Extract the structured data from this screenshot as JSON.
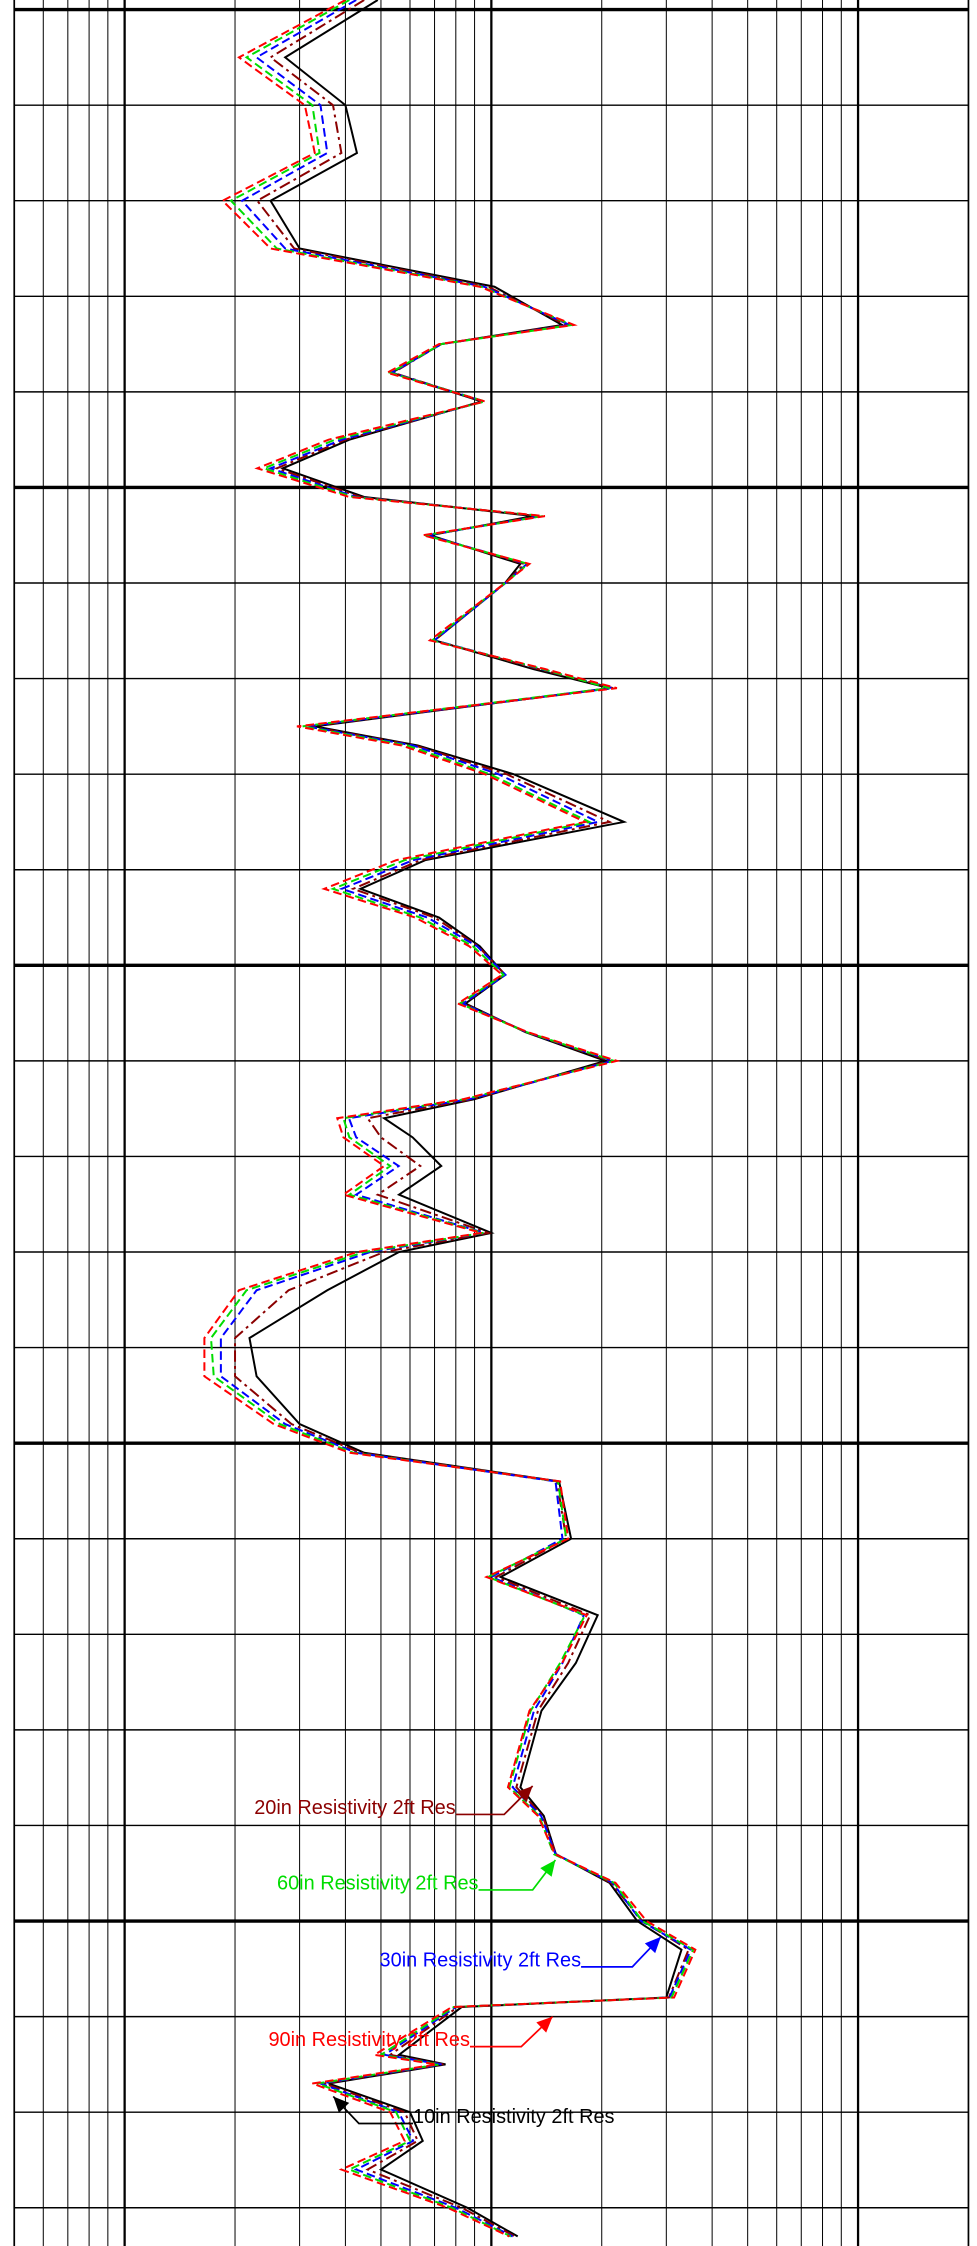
{
  "chart_data": {
    "type": "log-track",
    "xscale": "log",
    "grid": true,
    "y_inverted": true,
    "xlim": [
      0.5,
      200
    ],
    "xticks": [
      0.5,
      0.6,
      0.7,
      0.8,
      0.9,
      1,
      2,
      3,
      4,
      5,
      6,
      7,
      8,
      9,
      10,
      20,
      30,
      40,
      50,
      60,
      70,
      80,
      90,
      100,
      200
    ],
    "ylim": [
      -1,
      234
    ],
    "yticks": [
      0,
      10,
      20,
      30,
      40,
      50,
      60,
      70,
      80,
      90,
      100,
      110,
      120,
      130,
      140,
      150,
      160,
      170,
      180,
      190,
      200,
      210,
      220,
      230
    ],
    "y": [
      -1,
      5,
      10,
      15,
      20,
      25,
      29,
      33,
      35,
      38,
      41,
      45,
      48,
      51,
      53,
      55,
      58,
      60,
      66,
      69,
      71,
      75,
      77,
      80,
      85,
      89,
      92,
      95,
      98,
      101,
      104,
      107,
      110,
      114,
      116,
      118,
      121,
      124,
      128,
      130,
      134,
      139,
      143,
      148,
      151,
      154,
      160,
      164,
      168,
      173,
      178,
      186,
      189,
      193,
      196,
      200,
      203,
      208,
      209,
      214,
      215,
      217,
      220,
      223,
      226,
      230,
      233
    ],
    "series": [
      {
        "name": "10in Resistivity 2ft Res",
        "color": "#000000",
        "dash": "solid",
        "values": [
          4.9,
          2.74,
          4.0,
          4.3,
          2.5,
          3.0,
          10.2,
          15.6,
          7.3,
          5.35,
          9.4,
          4.1,
          2.7,
          4.5,
          13.0,
          6.8,
          12.0,
          10.9,
          7.0,
          13.0,
          21.0,
          3.3,
          6.3,
          11.5,
          23.0,
          6.6,
          4.4,
          7.2,
          9.3,
          10.9,
          8.5,
          12.4,
          20.5,
          9.0,
          5.1,
          6.1,
          7.3,
          5.6,
          10.0,
          5.6,
          3.57,
          2.19,
          2.29,
          3.0,
          4.5,
          15.3,
          16.5,
          10.6,
          19.5,
          17.0,
          13.7,
          12.0,
          13.9,
          15.0,
          21.0,
          25.0,
          33.0,
          30.0,
          8.3,
          5.6,
          7.5,
          3.6,
          6.0,
          6.5,
          5.0,
          8.6,
          11.8
        ]
      },
      {
        "name": "20in Resistivity 2ft Res",
        "color": "#8b0000",
        "dash": "dashdot",
        "values": [
          4.5,
          2.5,
          3.7,
          3.9,
          2.3,
          2.9,
          9.8,
          16.0,
          7.3,
          5.4,
          9.5,
          4.0,
          2.6,
          4.4,
          13.4,
          6.7,
          12.3,
          10.9,
          7.0,
          13.4,
          21.5,
          3.2,
          6.2,
          11.0,
          21.0,
          6.4,
          4.2,
          7.0,
          9.2,
          10.9,
          8.4,
          12.5,
          21.0,
          8.9,
          4.6,
          5.0,
          6.4,
          4.9,
          9.8,
          5.1,
          2.8,
          2.0,
          2.0,
          2.85,
          4.4,
          15.1,
          16.0,
          10.3,
          18.6,
          16.2,
          13.4,
          11.7,
          13.8,
          15.0,
          21.2,
          25.8,
          34.5,
          30.5,
          8.1,
          5.3,
          7.4,
          3.5,
          5.8,
          6.3,
          4.6,
          8.3,
          11.6
        ]
      },
      {
        "name": "30in Resistivity 2ft Res",
        "color": "#0000ff",
        "dash": "dash",
        "values": [
          4.28,
          2.29,
          3.42,
          3.57,
          2.09,
          2.74,
          9.56,
          16.35,
          7.31,
          5.35,
          9.56,
          3.91,
          2.5,
          4.28,
          13.67,
          6.69,
          12.5,
          10.93,
          6.99,
          13.67,
          21.4,
          3.13,
          6.12,
          10.45,
          19.54,
          6.12,
          3.91,
          6.69,
          9.14,
          10.93,
          8.36,
          12.5,
          21.4,
          8.74,
          4.09,
          4.28,
          5.59,
          4.28,
          9.56,
          4.68,
          2.29,
          1.83,
          1.83,
          2.74,
          4.28,
          14.96,
          15.63,
          10,
          17.87,
          15.63,
          13.07,
          11.43,
          13.67,
          14.96,
          21.4,
          25.6,
          35,
          30.6,
          8,
          5.12,
          7.31,
          3.42,
          5.59,
          6.12,
          4.28,
          8,
          11.43
        ]
      },
      {
        "name": "60in Resistivity 2ft Res",
        "color": "#00dd00",
        "dash": "dash",
        "values": [
          4.1,
          2.15,
          3.25,
          3.4,
          1.95,
          2.6,
          9.4,
          16.6,
          7.3,
          5.3,
          9.6,
          3.75,
          2.4,
          4.2,
          13.8,
          6.6,
          12.6,
          10.9,
          6.9,
          13.8,
          21.0,
          3.05,
          5.9,
          9.9,
          18.5,
          5.8,
          3.7,
          6.4,
          8.9,
          10.8,
          8.2,
          12.5,
          21.6,
          8.5,
          3.95,
          4.1,
          5.3,
          4.1,
          9.5,
          4.5,
          2.15,
          1.72,
          1.75,
          2.65,
          4.2,
          15.2,
          16.0,
          9.8,
          18.0,
          15.4,
          12.8,
          11.2,
          13.5,
          14.8,
          21.6,
          25.8,
          35.5,
          31.0,
          7.9,
          5.0,
          7.2,
          3.35,
          5.5,
          6.0,
          4.1,
          7.8,
          11.3
        ]
      },
      {
        "name": "90in Resistivity 2ft Res",
        "color": "#ff0000",
        "dash": "dash",
        "values": [
          4.0,
          2.05,
          3.1,
          3.3,
          1.85,
          2.5,
          9.3,
          16.8,
          7.2,
          5.2,
          9.6,
          3.6,
          2.3,
          4.1,
          14.0,
          6.5,
          12.7,
          10.9,
          6.8,
          14.0,
          22.0,
          2.95,
          5.7,
          9.6,
          18.0,
          5.5,
          3.5,
          6.2,
          8.7,
          10.7,
          8.1,
          12.6,
          22.0,
          8.4,
          3.8,
          3.95,
          5.1,
          3.95,
          9.4,
          4.3,
          2.05,
          1.65,
          1.65,
          2.55,
          4.1,
          15.4,
          16.2,
          9.7,
          18.2,
          15.6,
          12.7,
          11.1,
          13.4,
          14.9,
          21.8,
          26.5,
          36.0,
          31.5,
          7.8,
          4.8,
          7.1,
          3.25,
          5.3,
          5.8,
          3.9,
          7.6,
          11.2
        ]
      }
    ]
  }
}
